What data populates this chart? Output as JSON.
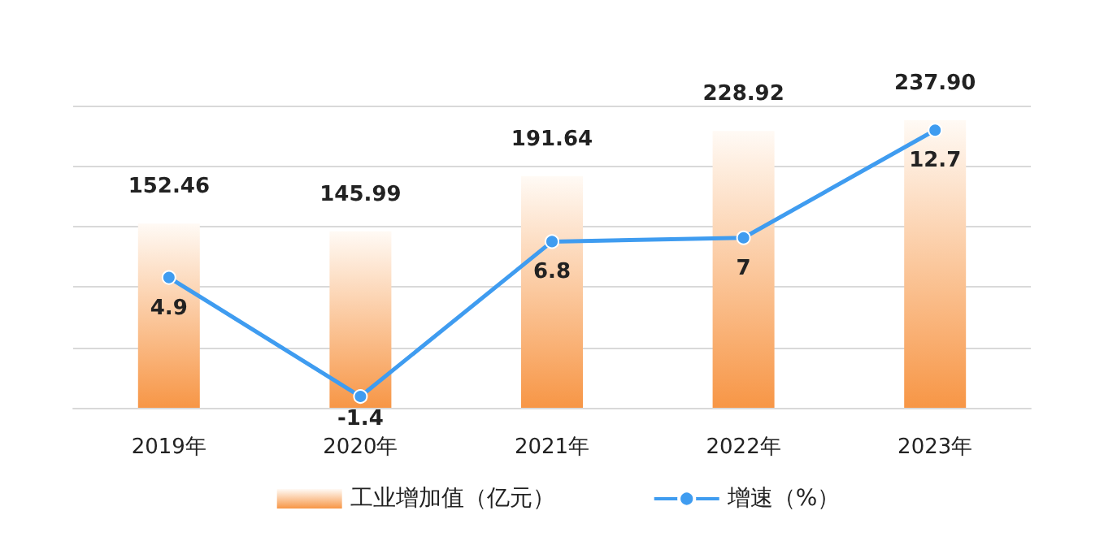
{
  "chart_data": {
    "type": "bar",
    "categories": [
      "2019年",
      "2020年",
      "2021年",
      "2022年",
      "2023年"
    ],
    "series": [
      {
        "name": "工业增加值（亿元）",
        "color": "#f79646",
        "values": [
          152.46,
          145.99,
          191.64,
          228.92,
          237.9
        ],
        "value_labels": [
          "152.46",
          "145.99",
          "191.64",
          "228.92",
          "237.90"
        ]
      },
      {
        "name": "增速（%）",
        "type": "line",
        "axis": "y2",
        "color": "#3f9cf0",
        "values": [
          4.9,
          -1.4,
          6.8,
          7,
          12.7
        ],
        "value_labels": [
          "4.9",
          "-1.4",
          "6.8",
          "7",
          "12.7"
        ]
      }
    ],
    "ylim": [
      0,
      250
    ],
    "yticks": [
      {
        "value": 0,
        "label": null
      },
      {
        "value": 50,
        "label": null
      },
      {
        "value": 100,
        "label": null
      },
      {
        "value": 150,
        "label": null
      },
      {
        "value": 200,
        "label": null
      },
      {
        "value": 250,
        "label": null
      }
    ],
    "y2lim": [
      -2,
      14
    ],
    "tick_labels": "x",
    "grid": "y",
    "legend": "bottom",
    "marker": "circle"
  }
}
